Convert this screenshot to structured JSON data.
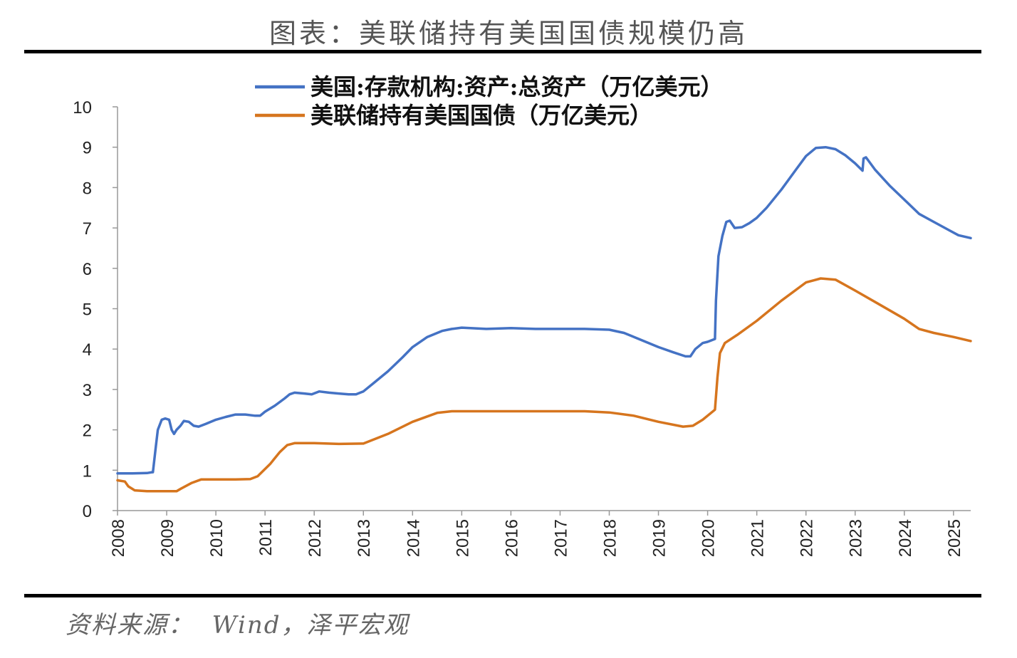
{
  "header": {
    "title": "图表：美联储持有美国国债规模仍高"
  },
  "footer": {
    "source": "资料来源：  Wind，泽平宏观"
  },
  "chart_data": {
    "type": "line",
    "title": "图表：美联储持有美国国债规模仍高",
    "xlabel": "",
    "ylabel": "",
    "ylim": [
      0,
      10
    ],
    "yticks": [
      "0",
      "1",
      "2",
      "3",
      "4",
      "5",
      "6",
      "7",
      "8",
      "9",
      "10"
    ],
    "xticks": [
      "2008",
      "2009",
      "2010",
      "2011",
      "2012",
      "2013",
      "2014",
      "2015",
      "2016",
      "2017",
      "2018",
      "2019",
      "2020",
      "2021",
      "2022",
      "2023",
      "2024",
      "2025"
    ],
    "xlim": [
      2008.0,
      2025.35
    ],
    "grid": false,
    "legend_position": "top",
    "series": [
      {
        "name": "美国:存款机构:资产:总资产（万亿美元）",
        "color": "#4472C4",
        "points": [
          [
            2008.0,
            0.92
          ],
          [
            2008.3,
            0.92
          ],
          [
            2008.6,
            0.93
          ],
          [
            2008.7,
            0.95
          ],
          [
            2008.72,
            0.95
          ],
          [
            2008.78,
            1.6
          ],
          [
            2008.82,
            2.0
          ],
          [
            2008.9,
            2.25
          ],
          [
            2008.97,
            2.28
          ],
          [
            2009.05,
            2.25
          ],
          [
            2009.1,
            2.0
          ],
          [
            2009.15,
            1.9
          ],
          [
            2009.2,
            2.0
          ],
          [
            2009.28,
            2.1
          ],
          [
            2009.35,
            2.22
          ],
          [
            2009.45,
            2.2
          ],
          [
            2009.55,
            2.1
          ],
          [
            2009.65,
            2.08
          ],
          [
            2009.8,
            2.15
          ],
          [
            2010.0,
            2.25
          ],
          [
            2010.2,
            2.32
          ],
          [
            2010.4,
            2.38
          ],
          [
            2010.6,
            2.38
          ],
          [
            2010.8,
            2.35
          ],
          [
            2010.9,
            2.35
          ],
          [
            2011.0,
            2.45
          ],
          [
            2011.2,
            2.6
          ],
          [
            2011.4,
            2.78
          ],
          [
            2011.5,
            2.88
          ],
          [
            2011.6,
            2.92
          ],
          [
            2011.8,
            2.9
          ],
          [
            2011.95,
            2.88
          ],
          [
            2012.1,
            2.95
          ],
          [
            2012.3,
            2.92
          ],
          [
            2012.5,
            2.9
          ],
          [
            2012.7,
            2.88
          ],
          [
            2012.85,
            2.88
          ],
          [
            2013.0,
            2.95
          ],
          [
            2013.2,
            3.15
          ],
          [
            2013.5,
            3.45
          ],
          [
            2013.8,
            3.8
          ],
          [
            2014.0,
            4.05
          ],
          [
            2014.3,
            4.3
          ],
          [
            2014.6,
            4.45
          ],
          [
            2014.8,
            4.5
          ],
          [
            2015.0,
            4.53
          ],
          [
            2015.5,
            4.5
          ],
          [
            2016.0,
            4.52
          ],
          [
            2016.5,
            4.5
          ],
          [
            2017.0,
            4.5
          ],
          [
            2017.5,
            4.5
          ],
          [
            2018.0,
            4.48
          ],
          [
            2018.3,
            4.4
          ],
          [
            2018.6,
            4.25
          ],
          [
            2019.0,
            4.05
          ],
          [
            2019.3,
            3.92
          ],
          [
            2019.55,
            3.82
          ],
          [
            2019.65,
            3.82
          ],
          [
            2019.75,
            4.0
          ],
          [
            2019.9,
            4.15
          ],
          [
            2020.0,
            4.18
          ],
          [
            2020.15,
            4.25
          ],
          [
            2020.17,
            5.2
          ],
          [
            2020.22,
            6.3
          ],
          [
            2020.3,
            6.8
          ],
          [
            2020.38,
            7.15
          ],
          [
            2020.45,
            7.18
          ],
          [
            2020.55,
            7.0
          ],
          [
            2020.7,
            7.02
          ],
          [
            2020.85,
            7.12
          ],
          [
            2021.0,
            7.25
          ],
          [
            2021.2,
            7.5
          ],
          [
            2021.5,
            7.95
          ],
          [
            2021.8,
            8.45
          ],
          [
            2022.0,
            8.78
          ],
          [
            2022.2,
            8.98
          ],
          [
            2022.4,
            9.0
          ],
          [
            2022.6,
            8.95
          ],
          [
            2022.8,
            8.8
          ],
          [
            2023.0,
            8.6
          ],
          [
            2023.15,
            8.42
          ],
          [
            2023.17,
            8.72
          ],
          [
            2023.22,
            8.75
          ],
          [
            2023.4,
            8.45
          ],
          [
            2023.7,
            8.05
          ],
          [
            2024.0,
            7.7
          ],
          [
            2024.3,
            7.35
          ],
          [
            2024.6,
            7.15
          ],
          [
            2024.9,
            6.95
          ],
          [
            2025.1,
            6.82
          ],
          [
            2025.35,
            6.75
          ]
        ]
      },
      {
        "name": "美联储持有美国国债（万亿美元）",
        "color": "#D6751E",
        "points": [
          [
            2008.0,
            0.75
          ],
          [
            2008.15,
            0.72
          ],
          [
            2008.22,
            0.6
          ],
          [
            2008.35,
            0.5
          ],
          [
            2008.6,
            0.48
          ],
          [
            2009.0,
            0.48
          ],
          [
            2009.2,
            0.48
          ],
          [
            2009.3,
            0.55
          ],
          [
            2009.5,
            0.68
          ],
          [
            2009.7,
            0.77
          ],
          [
            2010.0,
            0.77
          ],
          [
            2010.4,
            0.77
          ],
          [
            2010.7,
            0.78
          ],
          [
            2010.85,
            0.85
          ],
          [
            2011.1,
            1.15
          ],
          [
            2011.3,
            1.45
          ],
          [
            2011.45,
            1.62
          ],
          [
            2011.6,
            1.67
          ],
          [
            2012.0,
            1.67
          ],
          [
            2012.5,
            1.65
          ],
          [
            2013.0,
            1.66
          ],
          [
            2013.5,
            1.9
          ],
          [
            2014.0,
            2.2
          ],
          [
            2014.5,
            2.42
          ],
          [
            2014.8,
            2.46
          ],
          [
            2015.5,
            2.46
          ],
          [
            2016.5,
            2.46
          ],
          [
            2017.5,
            2.46
          ],
          [
            2018.0,
            2.43
          ],
          [
            2018.5,
            2.35
          ],
          [
            2019.0,
            2.2
          ],
          [
            2019.5,
            2.08
          ],
          [
            2019.7,
            2.1
          ],
          [
            2019.9,
            2.25
          ],
          [
            2020.15,
            2.5
          ],
          [
            2020.2,
            3.3
          ],
          [
            2020.25,
            3.9
          ],
          [
            2020.35,
            4.15
          ],
          [
            2020.6,
            4.35
          ],
          [
            2021.0,
            4.7
          ],
          [
            2021.5,
            5.2
          ],
          [
            2022.0,
            5.65
          ],
          [
            2022.3,
            5.75
          ],
          [
            2022.6,
            5.72
          ],
          [
            2023.0,
            5.45
          ],
          [
            2023.5,
            5.1
          ],
          [
            2024.0,
            4.75
          ],
          [
            2024.3,
            4.5
          ],
          [
            2024.6,
            4.4
          ],
          [
            2025.0,
            4.3
          ],
          [
            2025.35,
            4.2
          ]
        ]
      }
    ]
  }
}
